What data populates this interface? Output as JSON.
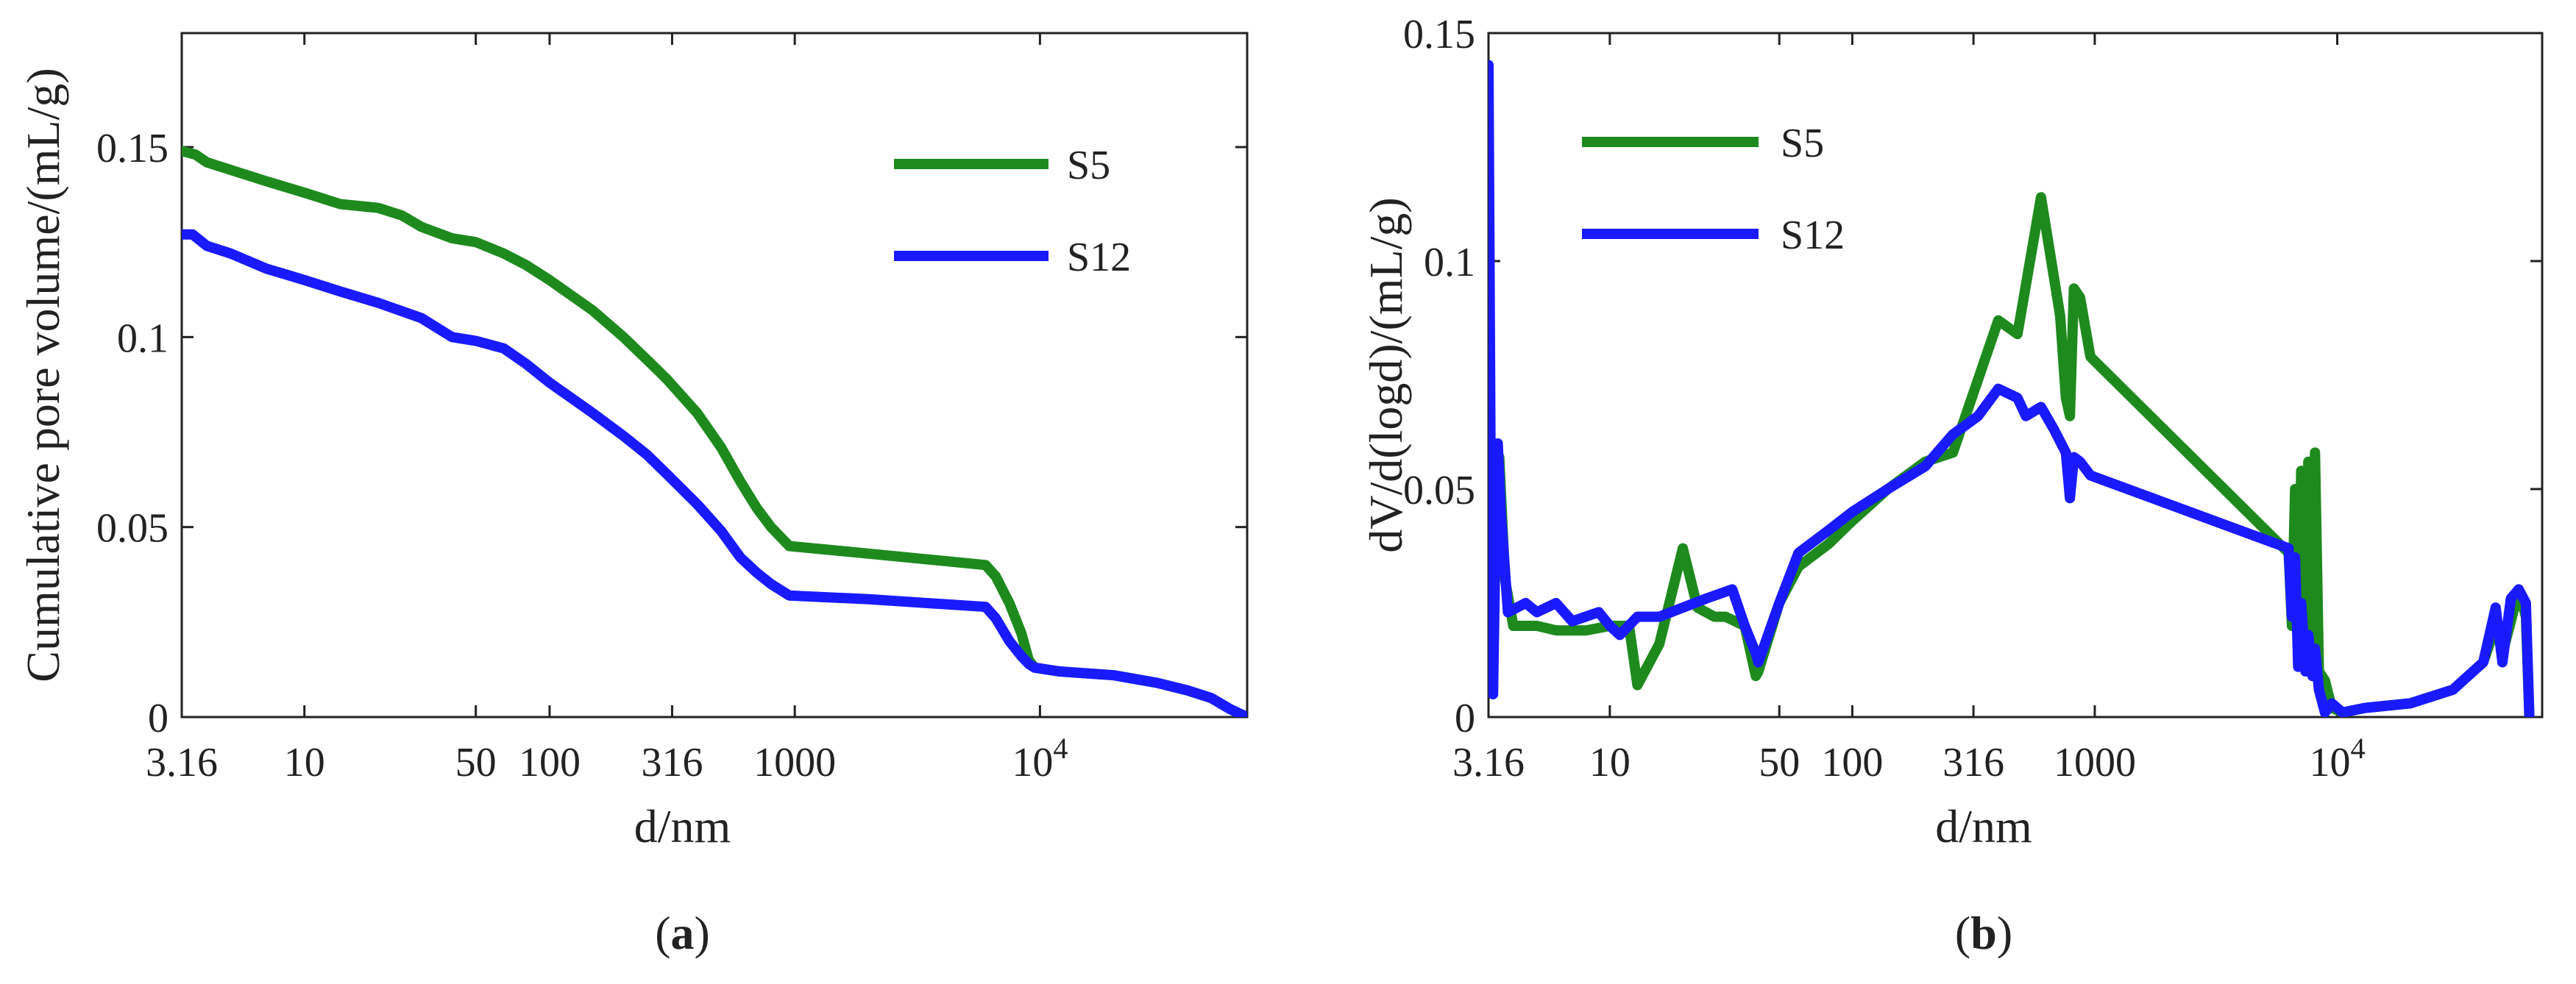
{
  "chart_data": [
    {
      "type": "line",
      "panel_label": "(a)",
      "xlabel": "d/nm",
      "ylabel": "Cumulative pore volume/(mL/g)",
      "xscale": "log",
      "xlim": [
        3.16,
        70000
      ],
      "ylim": [
        0,
        0.18
      ],
      "xticks": [
        {
          "value": 3.16,
          "label": "3.16"
        },
        {
          "value": 10,
          "label": "10"
        },
        {
          "value": 50,
          "label": "50"
        },
        {
          "value": 100,
          "label": "100"
        },
        {
          "value": 316,
          "label": "316"
        },
        {
          "value": 1000,
          "label": "1000"
        },
        {
          "value": 10000,
          "label": "10",
          "sup": "4"
        }
      ],
      "yticks": [
        {
          "value": 0,
          "label": "0"
        },
        {
          "value": 0.05,
          "label": "0.05"
        },
        {
          "value": 0.1,
          "label": "0.1"
        },
        {
          "value": 0.15,
          "label": "0.15"
        }
      ],
      "legend_position": "top-right",
      "series": [
        {
          "name": "S5",
          "color": "#1e8a1e",
          "points": [
            [
              3.16,
              0.149
            ],
            [
              3.6,
              0.148
            ],
            [
              4,
              0.146
            ],
            [
              5,
              0.144
            ],
            [
              7,
              0.141
            ],
            [
              10,
              0.138
            ],
            [
              14,
              0.135
            ],
            [
              20,
              0.134
            ],
            [
              25,
              0.132
            ],
            [
              30,
              0.129
            ],
            [
              40,
              0.126
            ],
            [
              50,
              0.125
            ],
            [
              65,
              0.122
            ],
            [
              80,
              0.119
            ],
            [
              100,
              0.115
            ],
            [
              150,
              0.107
            ],
            [
              200,
              0.1
            ],
            [
              250,
              0.094
            ],
            [
              300,
              0.089
            ],
            [
              400,
              0.08
            ],
            [
              500,
              0.071
            ],
            [
              600,
              0.062
            ],
            [
              700,
              0.055
            ],
            [
              800,
              0.05
            ],
            [
              950,
              0.045
            ],
            [
              2000,
              0.043
            ],
            [
              6000,
              0.04
            ],
            [
              6600,
              0.037
            ],
            [
              7500,
              0.03
            ],
            [
              8400,
              0.022
            ],
            [
              9000,
              0.015
            ],
            [
              9500,
              0.013
            ],
            [
              12000,
              0.012
            ],
            [
              20000,
              0.011
            ],
            [
              30000,
              0.009
            ],
            [
              40000,
              0.007
            ],
            [
              50000,
              0.005
            ],
            [
              60000,
              0.002
            ],
            [
              70000,
              0
            ]
          ]
        },
        {
          "name": "S12",
          "color": "#1a1aff",
          "points": [
            [
              3.16,
              0.127
            ],
            [
              3.5,
              0.127
            ],
            [
              4,
              0.124
            ],
            [
              5,
              0.122
            ],
            [
              7,
              0.118
            ],
            [
              10,
              0.115
            ],
            [
              14,
              0.112
            ],
            [
              20,
              0.109
            ],
            [
              30,
              0.105
            ],
            [
              40,
              0.1
            ],
            [
              50,
              0.099
            ],
            [
              65,
              0.097
            ],
            [
              80,
              0.093
            ],
            [
              100,
              0.088
            ],
            [
              150,
              0.08
            ],
            [
              200,
              0.074
            ],
            [
              250,
              0.069
            ],
            [
              300,
              0.064
            ],
            [
              400,
              0.056
            ],
            [
              500,
              0.049
            ],
            [
              600,
              0.042
            ],
            [
              700,
              0.038
            ],
            [
              800,
              0.035
            ],
            [
              950,
              0.032
            ],
            [
              2000,
              0.031
            ],
            [
              6000,
              0.029
            ],
            [
              6600,
              0.026
            ],
            [
              7500,
              0.02
            ],
            [
              8400,
              0.016
            ],
            [
              9000,
              0.014
            ],
            [
              9500,
              0.013
            ],
            [
              12000,
              0.012
            ],
            [
              20000,
              0.011
            ],
            [
              30000,
              0.009
            ],
            [
              40000,
              0.007
            ],
            [
              50000,
              0.005
            ],
            [
              60000,
              0.002
            ],
            [
              70000,
              0
            ]
          ]
        }
      ]
    },
    {
      "type": "line",
      "panel_label": "(b)",
      "xlabel": "d/nm",
      "ylabel": "dV/d(logd)/(mL/g)",
      "xscale": "log",
      "xlim": [
        3.16,
        70000
      ],
      "ylim": [
        0,
        0.15
      ],
      "xticks": [
        {
          "value": 3.16,
          "label": "3.16"
        },
        {
          "value": 10,
          "label": "10"
        },
        {
          "value": 50,
          "label": "50"
        },
        {
          "value": 100,
          "label": "100"
        },
        {
          "value": 316,
          "label": "316"
        },
        {
          "value": 1000,
          "label": "1000"
        },
        {
          "value": 10000,
          "label": "10",
          "sup": "4"
        }
      ],
      "yticks": [
        {
          "value": 0,
          "label": "0"
        },
        {
          "value": 0.05,
          "label": "0.05"
        },
        {
          "value": 0.1,
          "label": "0.1"
        },
        {
          "value": 0.15,
          "label": "0.15"
        }
      ],
      "legend_position": "top-left",
      "series": [
        {
          "name": "S5",
          "color": "#1e8a1e",
          "points": [
            [
              3.16,
              0.02
            ],
            [
              3.3,
              0.04
            ],
            [
              3.5,
              0.057
            ],
            [
              3.7,
              0.03
            ],
            [
              4,
              0.02
            ],
            [
              5,
              0.02
            ],
            [
              6,
              0.019
            ],
            [
              7,
              0.019
            ],
            [
              8,
              0.019
            ],
            [
              10,
              0.02
            ],
            [
              12,
              0.02
            ],
            [
              13,
              0.007
            ],
            [
              16,
              0.016
            ],
            [
              20,
              0.037
            ],
            [
              23,
              0.024
            ],
            [
              27,
              0.022
            ],
            [
              30,
              0.022
            ],
            [
              36,
              0.02
            ],
            [
              40,
              0.009
            ],
            [
              41,
              0.01
            ],
            [
              50,
              0.025
            ],
            [
              60,
              0.033
            ],
            [
              80,
              0.038
            ],
            [
              100,
              0.043
            ],
            [
              140,
              0.05
            ],
            [
              200,
              0.056
            ],
            [
              260,
              0.058
            ],
            [
              330,
              0.074
            ],
            [
              400,
              0.087
            ],
            [
              480,
              0.084
            ],
            [
              600,
              0.114
            ],
            [
              720,
              0.088
            ],
            [
              760,
              0.07
            ],
            [
              790,
              0.066
            ],
            [
              820,
              0.094
            ],
            [
              870,
              0.092
            ],
            [
              960,
              0.079
            ],
            [
              6300,
              0.036
            ],
            [
              6500,
              0.02
            ],
            [
              6700,
              0.05
            ],
            [
              6900,
              0.02
            ],
            [
              7100,
              0.054
            ],
            [
              7400,
              0.015
            ],
            [
              7600,
              0.056
            ],
            [
              7900,
              0.012
            ],
            [
              8100,
              0.058
            ],
            [
              8400,
              0.01
            ],
            [
              8900,
              0.008
            ],
            [
              9500,
              0.002
            ],
            [
              10500,
              0.001
            ],
            [
              13000,
              0.002
            ],
            [
              20000,
              0.003
            ],
            [
              30000,
              0.006
            ],
            [
              40000,
              0.012
            ],
            [
              45000,
              0.02
            ],
            [
              48000,
              0.014
            ],
            [
              52000,
              0.021
            ],
            [
              56000,
              0.028
            ],
            [
              60000,
              0.022
            ],
            [
              62000,
              0
            ]
          ]
        },
        {
          "name": "S12",
          "color": "#1a1aff",
          "points": [
            [
              3.16,
              0.143
            ],
            [
              3.22,
              0.06
            ],
            [
              3.3,
              0.005
            ],
            [
              3.38,
              0.04
            ],
            [
              3.45,
              0.06
            ],
            [
              3.55,
              0.045
            ],
            [
              3.8,
              0.023
            ],
            [
              4.5,
              0.025
            ],
            [
              5,
              0.023
            ],
            [
              6,
              0.025
            ],
            [
              7,
              0.021
            ],
            [
              9,
              0.023
            ],
            [
              10,
              0.02
            ],
            [
              11,
              0.018
            ],
            [
              13,
              0.022
            ],
            [
              16,
              0.022
            ],
            [
              20,
              0.024
            ],
            [
              25,
              0.026
            ],
            [
              32,
              0.028
            ],
            [
              36,
              0.02
            ],
            [
              40,
              0.014
            ],
            [
              41,
              0.012
            ],
            [
              50,
              0.025
            ],
            [
              60,
              0.036
            ],
            [
              80,
              0.041
            ],
            [
              100,
              0.045
            ],
            [
              140,
              0.05
            ],
            [
              200,
              0.055
            ],
            [
              260,
              0.062
            ],
            [
              330,
              0.066
            ],
            [
              400,
              0.072
            ],
            [
              480,
              0.07
            ],
            [
              520,
              0.066
            ],
            [
              600,
              0.068
            ],
            [
              680,
              0.063
            ],
            [
              760,
              0.058
            ],
            [
              790,
              0.048
            ],
            [
              820,
              0.057
            ],
            [
              870,
              0.056
            ],
            [
              960,
              0.053
            ],
            [
              6300,
              0.037
            ],
            [
              6500,
              0.022
            ],
            [
              6700,
              0.035
            ],
            [
              6900,
              0.011
            ],
            [
              7100,
              0.025
            ],
            [
              7400,
              0.01
            ],
            [
              7600,
              0.018
            ],
            [
              7900,
              0.009
            ],
            [
              8100,
              0.015
            ],
            [
              8400,
              0.006
            ],
            [
              8900,
              0.001
            ],
            [
              9500,
              0.003
            ],
            [
              10500,
              0.001
            ],
            [
              13000,
              0.002
            ],
            [
              20000,
              0.003
            ],
            [
              30000,
              0.006
            ],
            [
              40000,
              0.012
            ],
            [
              45000,
              0.024
            ],
            [
              48000,
              0.012
            ],
            [
              52000,
              0.026
            ],
            [
              56000,
              0.028
            ],
            [
              60000,
              0.025
            ],
            [
              62000,
              0
            ]
          ]
        }
      ]
    }
  ]
}
